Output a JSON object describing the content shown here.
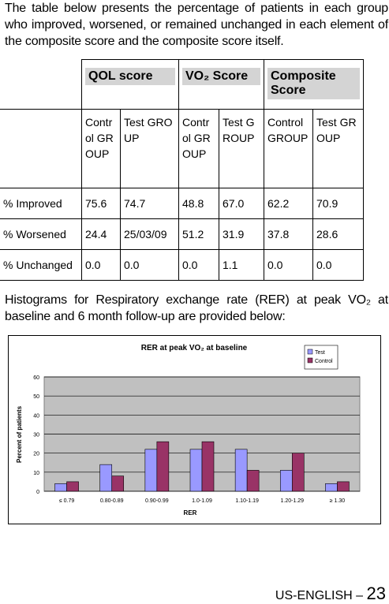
{
  "intro": "The table below presents the percentage of patients in each group who improved, worsened, or remained unchanged in each element of the composite score and the composite score itself.",
  "table": {
    "header": [
      "QOL score",
      "VO₂ Score",
      "Composite Score"
    ],
    "subheader": [
      "Control GROUP",
      "Test GROUP",
      "Control GROUP",
      "Test GROUP",
      "Control GROUP",
      "Test GROUP"
    ],
    "rows": [
      [
        "% Improved",
        "75.6",
        "74.7",
        "48.8",
        "67.0",
        "62.2",
        "70.9"
      ],
      [
        "% Worsened",
        "24.4",
        "25/03/09",
        "51.2",
        "31.9",
        "37.8",
        "28.6"
      ],
      [
        "% Unchanged",
        "0.0",
        "0.0",
        "0.0",
        "1.1",
        "0.0",
        "0.0"
      ]
    ]
  },
  "paragraph": "Histograms for Respiratory exchange rate (RER) at peak VO₂ at baseline and 6 month follow-up are provided below:",
  "chart_data": {
    "type": "bar",
    "title": "RER at peak VO₂ at baseline",
    "x_label": "RER",
    "y_label": "Percent of patients",
    "categories": [
      "≤ 0.79",
      "0.80-0.89",
      "0.90-0.99",
      "1.0-1.09",
      "1.10-1.19",
      "1.20-1.29",
      "≥ 1.30"
    ],
    "series": [
      {
        "name": "Test",
        "color": "#9999ff",
        "values": [
          4,
          14,
          22,
          22,
          22,
          11,
          4
        ]
      },
      {
        "name": "Control",
        "color": "#993366",
        "values": [
          5,
          8,
          26,
          26,
          11,
          20,
          5
        ]
      }
    ],
    "ylim": [
      0,
      60
    ],
    "yticks": [
      0,
      10,
      20,
      30,
      40,
      50,
      60
    ],
    "grid": true,
    "legend": "top-right"
  },
  "footer": {
    "label": "US-ENGLISH –",
    "page": "23"
  }
}
